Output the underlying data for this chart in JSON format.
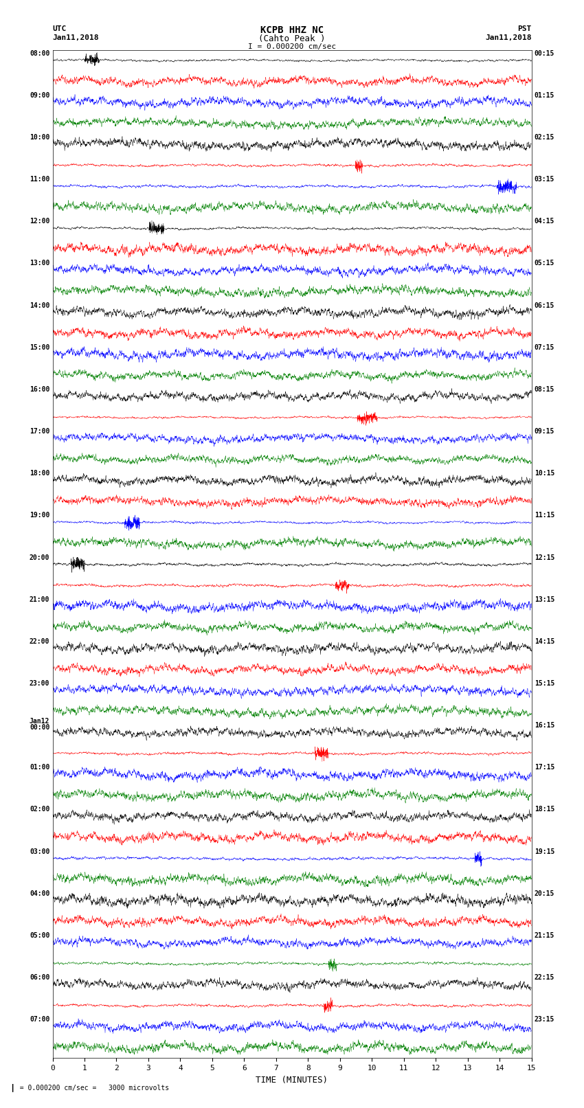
{
  "title_line1": "KCPB HHZ NC",
  "title_line2": "(Cahto Peak )",
  "scale_label": "I = 0.000200 cm/sec",
  "left_times": [
    "08:00",
    "09:00",
    "10:00",
    "11:00",
    "12:00",
    "13:00",
    "14:00",
    "15:00",
    "16:00",
    "17:00",
    "18:00",
    "19:00",
    "20:00",
    "21:00",
    "22:00",
    "23:00",
    "Jan12\n00:00",
    "01:00",
    "02:00",
    "03:00",
    "04:00",
    "05:00",
    "06:00",
    "07:00"
  ],
  "right_times": [
    "00:15",
    "01:15",
    "02:15",
    "03:15",
    "04:15",
    "05:15",
    "06:15",
    "07:15",
    "08:15",
    "09:15",
    "10:15",
    "11:15",
    "12:15",
    "13:15",
    "14:15",
    "15:15",
    "16:15",
    "17:15",
    "18:15",
    "19:15",
    "20:15",
    "21:15",
    "22:15",
    "23:15"
  ],
  "xlabel": "TIME (MINUTES)",
  "bottom_label": "= 0.000200 cm/sec =   3000 microvolts",
  "n_rows": 48,
  "n_per_row": 4,
  "colors": [
    "black",
    "red",
    "blue",
    "green"
  ],
  "time_minutes": 15,
  "background": "white",
  "figsize": [
    8.5,
    16.13
  ],
  "dpi": 100
}
